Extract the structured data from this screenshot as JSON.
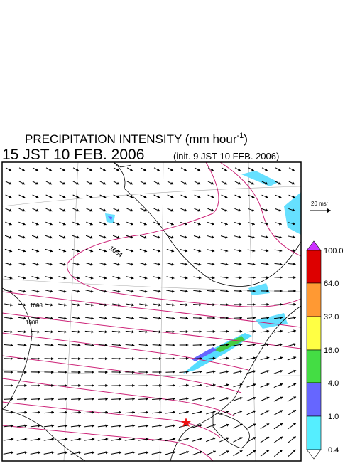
{
  "header": {
    "title": "PRECIPITATION INTENSITY (mm hour",
    "title_unit_exponent": "-1",
    "title_close": ")",
    "valid_time": "15 JST 10 FEB. 2006",
    "init_time": "(init. 9 JST 10 FEB. 2006)"
  },
  "vector_reference": {
    "label": "20 ms",
    "exponent": "-1"
  },
  "colorbar": {
    "labels": [
      "100.0",
      "64.0",
      "32.0",
      "16.0",
      "4.0",
      "1.0",
      "0.4"
    ]
  },
  "contours": {
    "labels": [
      "1004",
      "1008",
      "1008"
    ]
  }
}
